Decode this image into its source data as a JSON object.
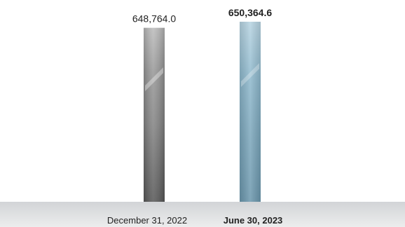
{
  "chart_data": {
    "type": "bar",
    "categories": [
      "December 31, 2022",
      "June 30, 2023"
    ],
    "series": [
      {
        "values": [
          648764.0,
          650364.6
        ],
        "value_labels": [
          "648,764.0",
          "650,364.6"
        ]
      }
    ],
    "emphasis": [
      false,
      true
    ],
    "colors": {
      "bar_primary": "#8e8e8e",
      "bar_highlight": "#7eaac0",
      "baseline_band": "#e1e2e4",
      "text": "#222222"
    }
  }
}
